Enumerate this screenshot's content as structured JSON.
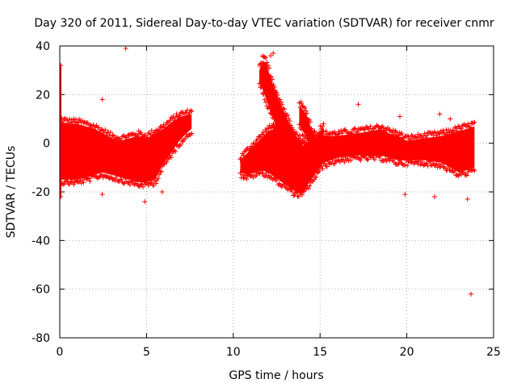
{
  "chart_data": {
    "type": "scatter",
    "title": "Day 320 of 2011, Sidereal Day-to-day VTEC variation (SDTVAR) for receiver cnmr",
    "xlabel": "GPS time / hours",
    "ylabel": "SDTVAR / TECUs",
    "xlim": [
      0,
      25
    ],
    "ylim": [
      -80,
      40
    ],
    "x_ticks": [
      0,
      5,
      10,
      15,
      20,
      25
    ],
    "y_ticks": [
      40,
      20,
      0,
      -20,
      -40,
      -60,
      -80
    ],
    "x_tick_labels": [
      "0",
      "5",
      "10",
      "15",
      "20",
      "25"
    ],
    "y_tick_labels": [
      "40",
      "20",
      "0",
      "-20",
      "-40",
      "-60",
      "-80"
    ],
    "grid": true,
    "marker": "+",
    "color": "#ff0000",
    "bands": [
      {
        "x": [
          0.0,
          0.5,
          1.0,
          1.5,
          2.0,
          2.5,
          3.0,
          3.5,
          4.0,
          4.5,
          5.0,
          5.5,
          6.0,
          6.5,
          7.0,
          7.6
        ],
        "upper": [
          9,
          8,
          8,
          7,
          6,
          4,
          2,
          1,
          2,
          3,
          2,
          4,
          6,
          9,
          11,
          12
        ],
        "lower": [
          -15,
          -15,
          -15,
          -14,
          -13,
          -12,
          -13,
          -14,
          -15,
          -16,
          -16,
          -15,
          -8,
          -3,
          2,
          6
        ]
      },
      {
        "x": [
          10.4,
          10.8,
          11.2,
          11.6,
          12.0,
          12.4,
          12.8,
          13.2,
          13.6,
          14.0,
          14.4,
          14.8,
          15.2,
          16.0,
          17.0,
          18.0,
          18.5,
          19.0,
          19.5,
          20.0,
          21.0,
          22.0,
          22.5,
          23.0,
          23.5,
          23.9
        ],
        "upper": [
          -7,
          -4,
          -1,
          2,
          5,
          6,
          4,
          2,
          0,
          -1,
          1,
          2,
          3,
          3,
          4,
          5,
          6,
          4,
          3,
          1,
          2,
          3,
          4,
          5,
          6,
          7
        ],
        "lower": [
          -12,
          -13,
          -12,
          -11,
          -12,
          -14,
          -16,
          -18,
          -20,
          -20,
          -16,
          -12,
          -8,
          -6,
          -5,
          -5,
          -5,
          -6,
          -7,
          -7,
          -7,
          -8,
          -10,
          -12,
          -11,
          -10
        ]
      },
      {
        "x": [
          11.5,
          11.7,
          11.9,
          12.1,
          12.3,
          12.5,
          12.8,
          13.1,
          13.4,
          13.7,
          14.0
        ],
        "upper": [
          30,
          34,
          33,
          28,
          24,
          20,
          15,
          10,
          6,
          2,
          0
        ],
        "lower": [
          25,
          22,
          18,
          14,
          10,
          6,
          3,
          1,
          -1,
          -2,
          -2
        ]
      },
      {
        "x": [
          13.8,
          14.0,
          14.2,
          14.4,
          14.6,
          14.8,
          15.0,
          15.2
        ],
        "upper": [
          15,
          14,
          12,
          8,
          4,
          2,
          5,
          7
        ],
        "lower": [
          8,
          5,
          3,
          0,
          -3,
          -3,
          -1,
          0
        ]
      }
    ],
    "outliers": [
      {
        "x": 3.8,
        "y": 39
      },
      {
        "x": 23.7,
        "y": -62
      },
      {
        "x": 0.05,
        "y": 32
      },
      {
        "x": 0.05,
        "y": -22
      },
      {
        "x": 2.45,
        "y": 18
      },
      {
        "x": 2.45,
        "y": -21
      },
      {
        "x": 4.9,
        "y": -24
      },
      {
        "x": 5.9,
        "y": -20
      },
      {
        "x": 12.3,
        "y": 37
      },
      {
        "x": 12.15,
        "y": 36
      },
      {
        "x": 13.9,
        "y": 17
      },
      {
        "x": 19.9,
        "y": -21
      },
      {
        "x": 23.5,
        "y": -23
      },
      {
        "x": 21.9,
        "y": 12
      },
      {
        "x": 19.6,
        "y": 11
      },
      {
        "x": 17.2,
        "y": 16
      },
      {
        "x": 22.5,
        "y": 10
      },
      {
        "x": 21.6,
        "y": -22
      }
    ]
  }
}
